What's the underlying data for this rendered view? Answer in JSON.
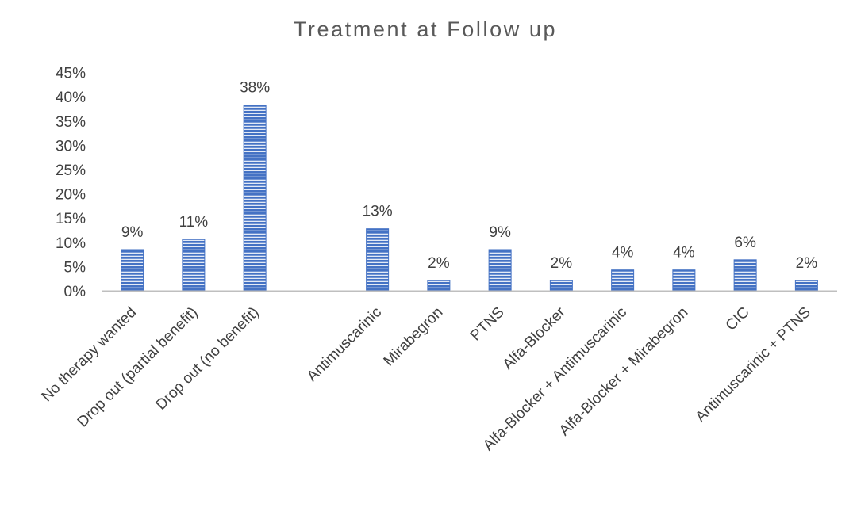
{
  "chart_data": {
    "type": "bar",
    "title": "Treatment at Follow up",
    "xlabel": "",
    "ylabel": "",
    "categories": [
      "No therapy wanted",
      "Drop out (partial benefit)",
      "Drop out (no benefit)",
      "",
      "Antimuscarinic",
      "Mirabegron",
      "PTNS",
      "Alfa-Blocker",
      "Alfa-Blocker + Antimuscarinic",
      "Alfa-Blocker + Mirabegron",
      "CIC",
      "Antimuscarinic + PTNS"
    ],
    "values": [
      8.5,
      10.6,
      38.3,
      null,
      12.8,
      2.1,
      8.5,
      2.1,
      4.3,
      4.3,
      6.4,
      2.1
    ],
    "data_labels": [
      "9%",
      "11%",
      "38%",
      "",
      "13%",
      "2%",
      "9%",
      "2%",
      "4%",
      "4%",
      "6%",
      "2%"
    ],
    "y_ticks": [
      0,
      5,
      10,
      15,
      20,
      25,
      30,
      35,
      40,
      45
    ],
    "y_tick_labels": [
      "0%",
      "5%",
      "10%",
      "15%",
      "20%",
      "25%",
      "30%",
      "35%",
      "40%",
      "45%"
    ],
    "ylim": [
      0,
      45
    ],
    "grid": false,
    "legend": "none",
    "colors": {
      "bar_fill": "#4472c4",
      "bar_stripe": "#ffffff",
      "axis": "#bfbfbf",
      "text": "#404040",
      "title": "#595959"
    }
  }
}
